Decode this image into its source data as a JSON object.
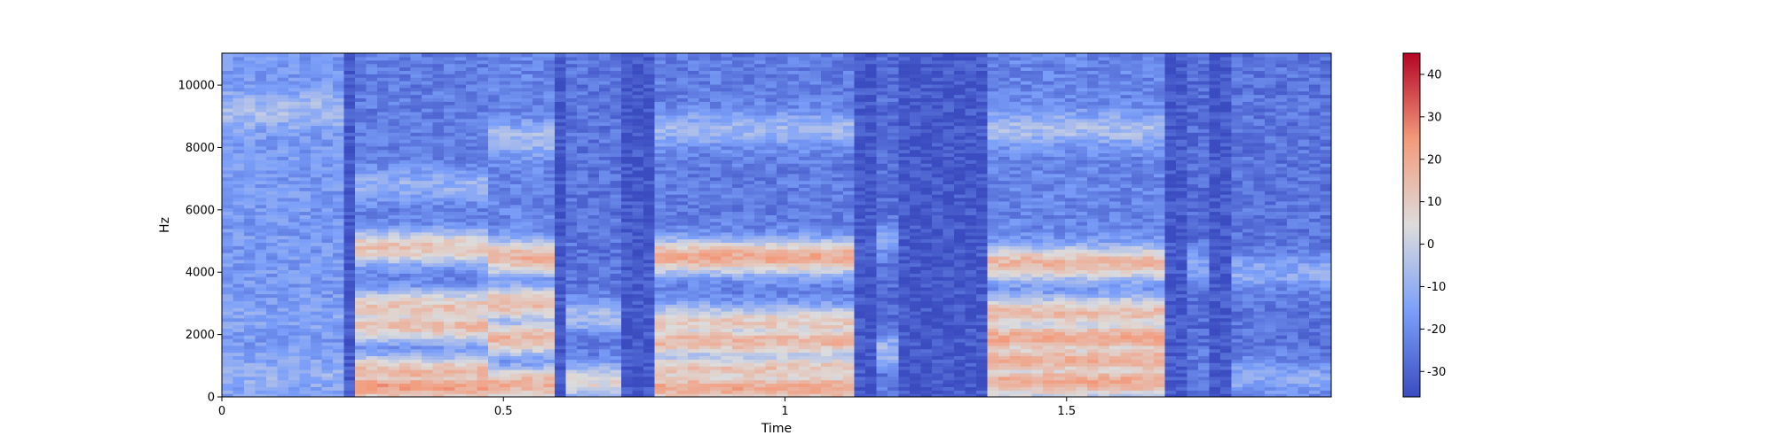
{
  "chart_data": {
    "type": "heatmap",
    "title": "",
    "xlabel": "Time",
    "ylabel": "Hz",
    "xlim": [
      0,
      1.97
    ],
    "ylim": [
      0,
      11025
    ],
    "xticks": [
      {
        "value": 0,
        "label": "0"
      },
      {
        "value": 0.5,
        "label": "0.5"
      },
      {
        "value": 1,
        "label": "1"
      },
      {
        "value": 1.5,
        "label": "1.5"
      }
    ],
    "yticks": [
      {
        "value": 0,
        "label": "0"
      },
      {
        "value": 2000,
        "label": "2000"
      },
      {
        "value": 4000,
        "label": "4000"
      },
      {
        "value": 6000,
        "label": "6000"
      },
      {
        "value": 8000,
        "label": "8000"
      },
      {
        "value": 10000,
        "label": "10000"
      }
    ],
    "colormap": "coolwarm",
    "colorbar": {
      "range": [
        -36,
        45
      ],
      "ticks": [
        {
          "value": 40,
          "label": "40"
        },
        {
          "value": 30,
          "label": "30"
        },
        {
          "value": 20,
          "label": "20"
        },
        {
          "value": 10,
          "label": "10"
        },
        {
          "value": 0,
          "label": "0"
        },
        {
          "value": -10,
          "label": "-10"
        },
        {
          "value": -20,
          "label": "-20"
        },
        {
          "value": -30,
          "label": "-30"
        }
      ]
    },
    "segments": [
      {
        "t0": 0.0,
        "t1": 0.22,
        "level": -17,
        "bands": [
          [
            700,
            -10
          ],
          [
            2500,
            -14
          ],
          [
            9200,
            -6
          ]
        ]
      },
      {
        "t0": 0.23,
        "t1": 0.47,
        "level": -24,
        "bands": [
          [
            350,
            22
          ],
          [
            800,
            16
          ],
          [
            2300,
            14
          ],
          [
            2900,
            12
          ],
          [
            4800,
            12
          ],
          [
            6800,
            -10
          ]
        ]
      },
      {
        "t0": 0.48,
        "t1": 0.6,
        "level": -22,
        "bands": [
          [
            400,
            18
          ],
          [
            1900,
            16
          ],
          [
            3000,
            16
          ],
          [
            4500,
            18
          ],
          [
            8300,
            -6
          ]
        ]
      },
      {
        "t0": 0.61,
        "t1": 0.7,
        "level": -26,
        "bands": [
          [
            500,
            6
          ],
          [
            2600,
            -6
          ]
        ]
      },
      {
        "t0": 0.77,
        "t1": 1.12,
        "level": -24,
        "bands": [
          [
            300,
            20
          ],
          [
            900,
            12
          ],
          [
            1800,
            16
          ],
          [
            2400,
            10
          ],
          [
            4500,
            20
          ],
          [
            8600,
            -8
          ]
        ]
      },
      {
        "t0": 1.16,
        "t1": 1.2,
        "level": -28,
        "bands": [
          [
            1500,
            -8
          ],
          [
            5000,
            -14
          ]
        ]
      },
      {
        "t0": 1.35,
        "t1": 1.68,
        "level": -22,
        "bands": [
          [
            500,
            20
          ],
          [
            1200,
            18
          ],
          [
            1900,
            20
          ],
          [
            2700,
            14
          ],
          [
            4300,
            16
          ],
          [
            8600,
            -6
          ]
        ]
      },
      {
        "t0": 1.72,
        "t1": 1.76,
        "level": -28,
        "bands": [
          [
            4200,
            -14
          ]
        ]
      },
      {
        "t0": 1.8,
        "t1": 1.97,
        "level": -26,
        "bands": [
          [
            600,
            -12
          ],
          [
            4000,
            -12
          ]
        ]
      }
    ]
  }
}
